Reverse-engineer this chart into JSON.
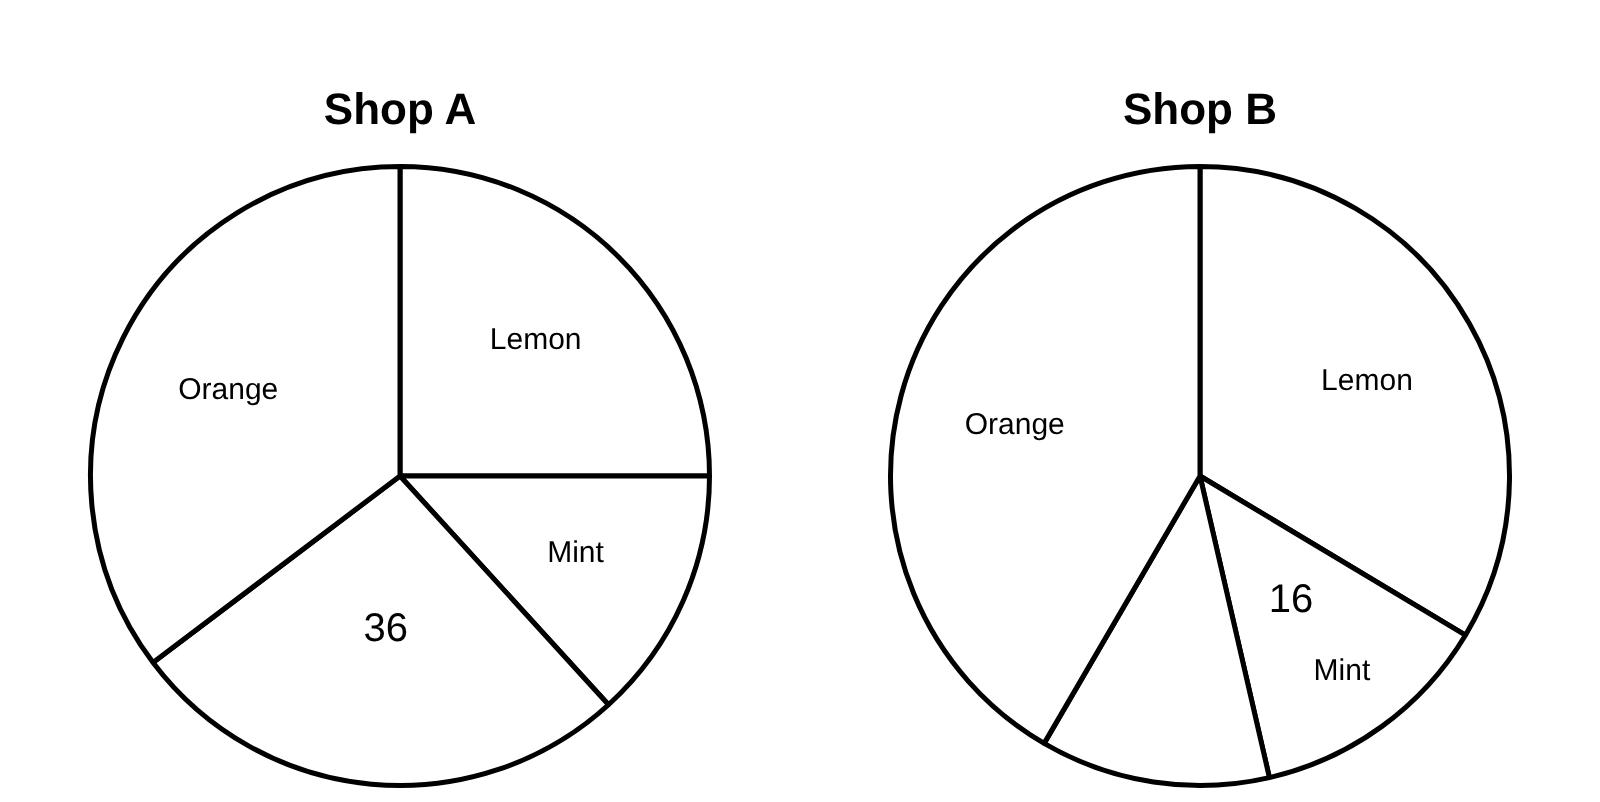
{
  "chart_data": [
    {
      "type": "pie",
      "title": "Shop A",
      "categories": [
        "Lemon",
        "Mint",
        null,
        "Orange"
      ],
      "values": [
        34,
        18,
        36,
        48
      ],
      "colors": [
        "#ffffff",
        "#ffffff",
        "#ffffff",
        "#ffffff"
      ],
      "value_labels": [
        null,
        null,
        "36",
        null
      ]
    },
    {
      "type": "pie",
      "title": "Shop B",
      "categories": [
        "Lemon",
        "Mint",
        null,
        "Orange"
      ],
      "values": [
        42,
        16,
        15,
        52
      ],
      "colors": [
        "#ffffff",
        "#ffffff",
        "#ffffff",
        "#ffffff"
      ],
      "value_labels": [
        null,
        "16",
        null,
        null
      ]
    }
  ]
}
